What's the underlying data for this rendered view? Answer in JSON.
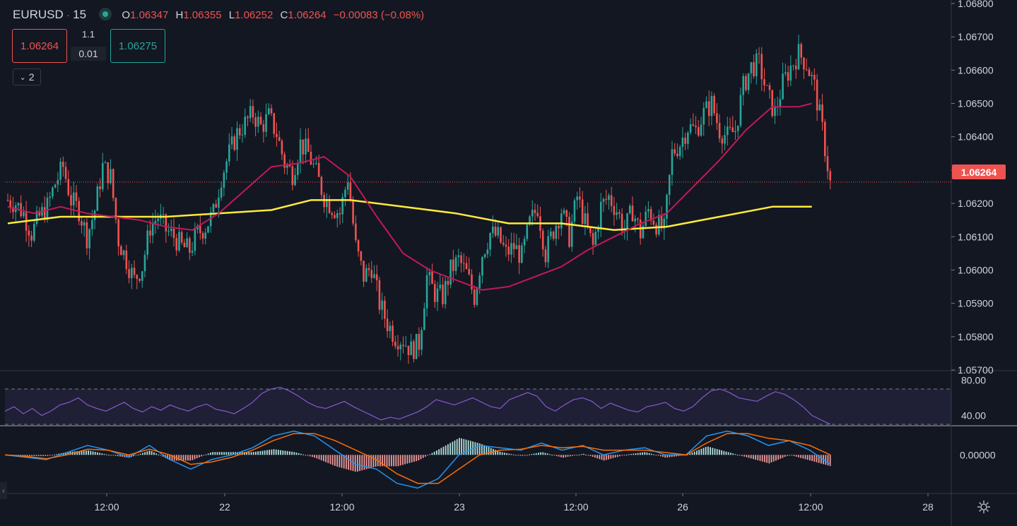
{
  "legend": {
    "symbol": "EURUSD",
    "interval": "15",
    "open_label": "O",
    "open": "1.06347",
    "high_label": "H",
    "high": "1.06355",
    "low_label": "L",
    "low": "1.06252",
    "close_label": "C",
    "close": "1.06264",
    "change": "−0.00083 (−0.08%)"
  },
  "trade": {
    "sell_price": "1.06264",
    "buy_price": "1.06275",
    "spread": "1.1",
    "lot": "0.01"
  },
  "indicators_collapsed_count": "2",
  "last_price_tag": "1.06264",
  "colors": {
    "up": "#26a69a",
    "down": "#ef5350",
    "ma_fast": "#c2185b",
    "ma_slow": "#ffeb3b",
    "rsi": "#7e57c2",
    "macd": "#2196f3",
    "signal": "#ff6d00"
  },
  "chart_data": [
    {
      "type": "candlestick",
      "name": "price",
      "ylim": [
        1.057,
        1.068
      ],
      "y_ticks": [
        "1.06800",
        "1.06700",
        "1.06600",
        "1.06500",
        "1.06400",
        "1.06300",
        "1.06200",
        "1.06100",
        "1.06000",
        "1.05900",
        "1.05800",
        "1.05700"
      ],
      "x_ticks": [
        "12:00",
        "22",
        "12:00",
        "23",
        "12:00",
        "26",
        "12:00",
        "28"
      ],
      "close_path": [
        [
          0,
          1.0621
        ],
        [
          3,
          1.062
        ],
        [
          6,
          1.0617
        ],
        [
          9,
          1.0611
        ],
        [
          12,
          1.0616
        ],
        [
          15,
          1.0619
        ],
        [
          18,
          1.0626
        ],
        [
          21,
          1.0631
        ],
        [
          24,
          1.0621
        ],
        [
          27,
          1.0618
        ],
        [
          30,
          1.061
        ],
        [
          33,
          1.0618
        ],
        [
          36,
          1.0631
        ],
        [
          39,
          1.0628
        ],
        [
          42,
          1.0609
        ],
        [
          45,
          1.0603
        ],
        [
          48,
          1.0597
        ],
        [
          51,
          1.0601
        ],
        [
          54,
          1.0613
        ],
        [
          57,
          1.0616
        ],
        [
          60,
          1.0612
        ],
        [
          63,
          1.061
        ],
        [
          66,
          1.0607
        ],
        [
          69,
          1.0606
        ],
        [
          72,
          1.0611
        ],
        [
          75,
          1.0613
        ],
        [
          78,
          1.0617
        ],
        [
          81,
          1.0628
        ],
        [
          84,
          1.0635
        ],
        [
          87,
          1.0641
        ],
        [
          90,
          1.0644
        ],
        [
          93,
          1.0647
        ],
        [
          96,
          1.0643
        ],
        [
          99,
          1.0646
        ],
        [
          102,
          1.0641
        ],
        [
          105,
          1.0632
        ],
        [
          108,
          1.0629
        ],
        [
          111,
          1.0638
        ],
        [
          114,
          1.0635
        ],
        [
          117,
          1.0629
        ],
        [
          120,
          1.0622
        ],
        [
          123,
          1.0619
        ],
        [
          126,
          1.0617
        ],
        [
          129,
          1.0628
        ],
        [
          132,
          1.0607
        ],
        [
          135,
          1.0598
        ],
        [
          138,
          1.0601
        ],
        [
          141,
          1.059
        ],
        [
          144,
          1.0584
        ],
        [
          147,
          1.058
        ],
        [
          150,
          1.0579
        ],
        [
          153,
          1.0576
        ],
        [
          156,
          1.0578
        ],
        [
          159,
          1.0598
        ],
        [
          162,
          1.0593
        ],
        [
          165,
          1.0592
        ],
        [
          168,
          1.06
        ],
        [
          171,
          1.0603
        ],
        [
          174,
          1.0599
        ],
        [
          177,
          1.0592
        ],
        [
          180,
          1.0605
        ],
        [
          183,
          1.0611
        ],
        [
          186,
          1.061
        ],
        [
          189,
          1.0605
        ],
        [
          192,
          1.0607
        ],
        [
          195,
          1.0604
        ],
        [
          198,
          1.0614
        ],
        [
          201,
          1.0619
        ],
        [
          204,
          1.0605
        ],
        [
          207,
          1.0612
        ],
        [
          210,
          1.0618
        ],
        [
          213,
          1.061
        ],
        [
          216,
          1.0622
        ],
        [
          219,
          1.0614
        ],
        [
          222,
          1.0607
        ],
        [
          225,
          1.0619
        ],
        [
          228,
          1.0622
        ],
        [
          231,
          1.0618
        ],
        [
          234,
          1.0612
        ],
        [
          237,
          1.0618
        ],
        [
          240,
          1.0611
        ],
        [
          243,
          1.0618
        ],
        [
          246,
          1.0614
        ],
        [
          249,
          1.0612
        ],
        [
          252,
          1.0635
        ],
        [
          255,
          1.0638
        ],
        [
          258,
          1.0643
        ],
        [
          261,
          1.0642
        ],
        [
          264,
          1.0647
        ],
        [
          267,
          1.065
        ],
        [
          270,
          1.0642
        ],
        [
          273,
          1.064
        ],
        [
          276,
          1.0642
        ],
        [
          279,
          1.0655
        ],
        [
          282,
          1.0661
        ],
        [
          285,
          1.0662
        ],
        [
          288,
          1.0653
        ],
        [
          291,
          1.0647
        ],
        [
          294,
          1.0656
        ],
        [
          297,
          1.0661
        ],
        [
          300,
          1.0665
        ],
        [
          303,
          1.0662
        ],
        [
          306,
          1.0655
        ],
        [
          309,
          1.0642
        ],
        [
          312,
          1.0626
        ]
      ],
      "ma_fast": [
        [
          0,
          1.0619
        ],
        [
          10,
          1.0617
        ],
        [
          20,
          1.0619
        ],
        [
          30,
          1.0617
        ],
        [
          40,
          1.0616
        ],
        [
          50,
          1.0615
        ],
        [
          60,
          1.0613
        ],
        [
          70,
          1.0612
        ],
        [
          80,
          1.0617
        ],
        [
          90,
          1.0624
        ],
        [
          100,
          1.0631
        ],
        [
          110,
          1.0632
        ],
        [
          120,
          1.0634
        ],
        [
          130,
          1.0628
        ],
        [
          140,
          1.0616
        ],
        [
          150,
          1.0605
        ],
        [
          160,
          1.06
        ],
        [
          170,
          1.0597
        ],
        [
          180,
          1.0594
        ],
        [
          190,
          1.0595
        ],
        [
          200,
          1.0598
        ],
        [
          210,
          1.0601
        ],
        [
          220,
          1.0606
        ],
        [
          230,
          1.061
        ],
        [
          240,
          1.0614
        ],
        [
          250,
          1.0617
        ],
        [
          260,
          1.0625
        ],
        [
          270,
          1.0633
        ],
        [
          280,
          1.0642
        ],
        [
          290,
          1.0649
        ],
        [
          300,
          1.0649
        ],
        [
          305,
          1.065
        ]
      ],
      "ma_slow": [
        [
          0,
          1.0614
        ],
        [
          20,
          1.0616
        ],
        [
          40,
          1.0616
        ],
        [
          60,
          1.0616
        ],
        [
          80,
          1.0617
        ],
        [
          100,
          1.0618
        ],
        [
          115,
          1.0621
        ],
        [
          130,
          1.0621
        ],
        [
          150,
          1.0619
        ],
        [
          170,
          1.0617
        ],
        [
          190,
          1.0614
        ],
        [
          210,
          1.0614
        ],
        [
          230,
          1.0612
        ],
        [
          250,
          1.0613
        ],
        [
          270,
          1.0616
        ],
        [
          290,
          1.0619
        ],
        [
          305,
          1.0619
        ]
      ]
    },
    {
      "type": "line",
      "name": "rsi",
      "ylim": [
        30,
        90
      ],
      "y_ticks": [
        "80.00",
        "40.00"
      ],
      "band": [
        70,
        30
      ],
      "values": [
        45,
        50,
        42,
        48,
        40,
        45,
        52,
        55,
        60,
        52,
        48,
        45,
        50,
        55,
        48,
        44,
        50,
        46,
        52,
        48,
        45,
        50,
        53,
        47,
        45,
        42,
        48,
        55,
        65,
        70,
        72,
        68,
        62,
        55,
        50,
        48,
        52,
        56,
        50,
        45,
        40,
        35,
        38,
        36,
        40,
        44,
        50,
        58,
        55,
        52,
        56,
        60,
        55,
        50,
        48,
        58,
        62,
        66,
        62,
        50,
        45,
        52,
        58,
        60,
        56,
        48,
        54,
        50,
        46,
        44,
        50,
        52,
        55,
        48,
        45,
        50,
        60,
        68,
        70,
        66,
        60,
        58,
        56,
        62,
        67,
        64,
        58,
        50,
        40,
        35,
        30
      ]
    },
    {
      "type": "line",
      "name": "macd",
      "ylim": [
        -0.0008,
        0.0006
      ],
      "y_ticks": [
        "0.00000"
      ],
      "macd": [
        0,
        -5e-05,
        -0.0001,
        5e-05,
        0.0002,
        0.0001,
        -5e-05,
        0.0002,
        -0.0001,
        -0.0003,
        -0.0001,
        0,
        0.00015,
        0.0004,
        0.0005,
        0.0004,
        0.0001,
        -0.0002,
        -0.0003,
        -0.0006,
        -0.0007,
        -0.0005,
        0,
        0.0002,
        0.00015,
        0.0001,
        0.00025,
        0.0001,
        0.0002,
        0,
        0.0001,
        0.00015,
        0,
        0,
        0.0004,
        0.0005,
        0.0004,
        0.0002,
        0.0003,
        0.0001,
        -0.0002
      ],
      "signal": [
        0,
        -3e-05,
        -8e-05,
        0,
        0.00012,
        0.0001,
        0,
        0.00012,
        0,
        -0.0002,
        -0.00015,
        -5e-05,
        0.0001,
        0.0003,
        0.00045,
        0.00045,
        0.0003,
        0.0001,
        -0.0001,
        -0.0004,
        -0.0006,
        -0.0006,
        -0.0003,
        0,
        0.0001,
        0.00012,
        0.0002,
        0.00015,
        0.00018,
        0.0001,
        0.0001,
        0.0001,
        5e-05,
        0,
        0.00025,
        0.00045,
        0.00045,
        0.00035,
        0.0003,
        0.0002,
        0
      ]
    }
  ]
}
